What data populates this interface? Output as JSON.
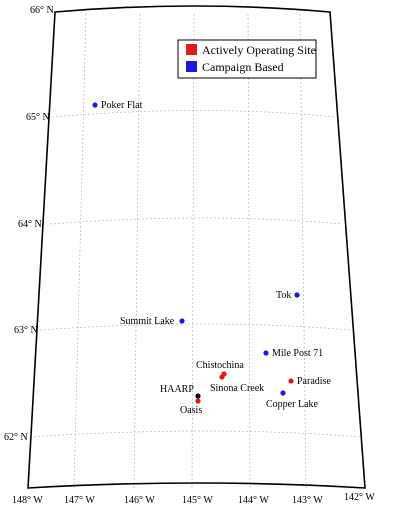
{
  "legend": {
    "items": [
      {
        "label": "Actively Operating Site",
        "color": "#e01b1b"
      },
      {
        "label": "Campaign Based",
        "color": "#1a1adf"
      }
    ]
  },
  "lat_labels": [
    "66° N",
    "65° N",
    "64° N",
    "63° N",
    "62° N"
  ],
  "lon_labels": [
    "148° W",
    "147° W",
    "146° W",
    "145° W",
    "144° W",
    "143° W",
    "142° W"
  ],
  "sites": [
    {
      "name": "Poker Flat",
      "lon": -147.45,
      "lat": 65.12,
      "type": "campaign",
      "color": "#1a1adf"
    },
    {
      "name": "Tok",
      "lon": -142.98,
      "lat": 63.34,
      "type": "campaign",
      "color": "#1a1adf"
    },
    {
      "name": "Summit Lake",
      "lon": -145.5,
      "lat": 63.09,
      "type": "campaign",
      "color": "#1a1adf"
    },
    {
      "name": "Mile Post 71",
      "lon": -143.82,
      "lat": 62.8,
      "type": "campaign",
      "color": "#1a1adf"
    },
    {
      "name": "Chistochina",
      "lon": -144.65,
      "lat": 62.59,
      "type": "active",
      "color": "#e01b1b"
    },
    {
      "name": "Sinona Creek",
      "lon": -144.7,
      "lat": 62.57,
      "type": "active",
      "color": "#e01b1b"
    },
    {
      "name": "Paradise",
      "lon": -143.26,
      "lat": 62.55,
      "type": "active",
      "color": "#e01b1b"
    },
    {
      "name": "Copper Lake",
      "lon": -143.39,
      "lat": 62.42,
      "type": "campaign",
      "color": "#1a1adf"
    },
    {
      "name": "HAARP",
      "lon": -145.15,
      "lat": 62.39,
      "type": "campaign",
      "color": "#111111"
    },
    {
      "name": "Oasis",
      "lon": -145.15,
      "lat": 62.35,
      "type": "active",
      "color": "#e01b1b"
    }
  ]
}
